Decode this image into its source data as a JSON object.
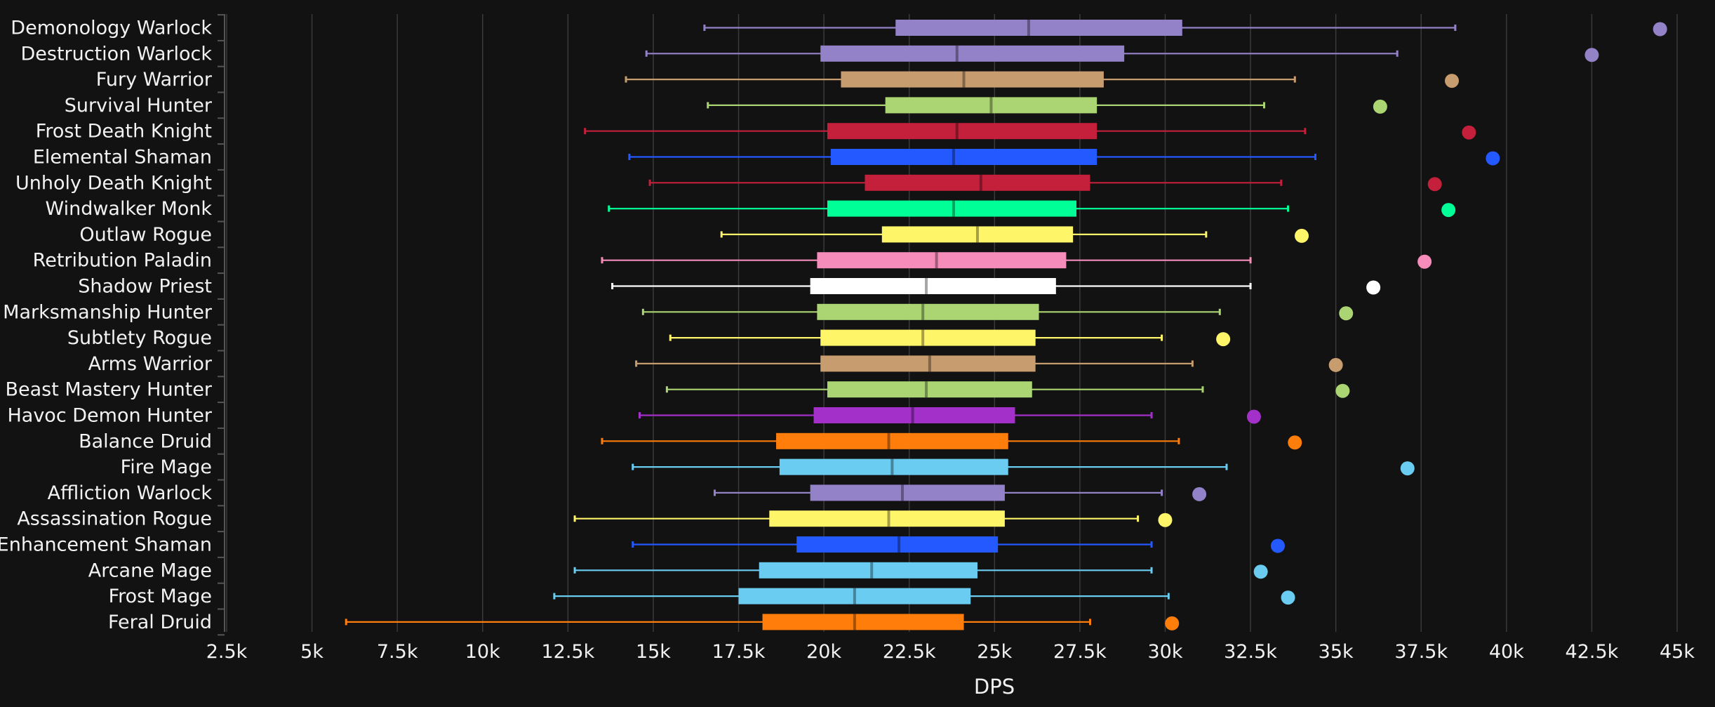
{
  "chart_data": {
    "type": "box",
    "title": "",
    "xlabel": "DPS",
    "ylabel": "",
    "xlim": [
      2500,
      45000
    ],
    "x_ticks": [
      2500,
      5000,
      7500,
      10000,
      12500,
      15000,
      17500,
      20000,
      22500,
      25000,
      27500,
      30000,
      32500,
      35000,
      37500,
      40000,
      42500,
      45000
    ],
    "x_tick_labels": [
      "2.5k",
      "5k",
      "7.5k",
      "10k",
      "12.5k",
      "15k",
      "17.5k",
      "20k",
      "22.5k",
      "25k",
      "27.5k",
      "30k",
      "32.5k",
      "35k",
      "37.5k",
      "40k",
      "42.5k",
      "45k"
    ],
    "grid": true,
    "series": [
      {
        "name": "Demonology Warlock",
        "color": "#9482c9",
        "min": 16500,
        "q1": 22100,
        "median": 26000,
        "q3": 30500,
        "max": 38500,
        "outlier": 44500
      },
      {
        "name": "Destruction Warlock",
        "color": "#9482c9",
        "min": 14800,
        "q1": 19900,
        "median": 23900,
        "q3": 28800,
        "max": 36800,
        "outlier": 42500
      },
      {
        "name": "Fury Warrior",
        "color": "#c79c6e",
        "min": 14200,
        "q1": 20500,
        "median": 24100,
        "q3": 28200,
        "max": 33800,
        "outlier": 38400
      },
      {
        "name": "Survival Hunter",
        "color": "#abd473",
        "min": 16600,
        "q1": 21800,
        "median": 24900,
        "q3": 28000,
        "max": 32900,
        "outlier": 36300
      },
      {
        "name": "Frost Death Knight",
        "color": "#c41f3b",
        "min": 13000,
        "q1": 20100,
        "median": 23900,
        "q3": 28000,
        "max": 34100,
        "outlier": 38900
      },
      {
        "name": "Elemental Shaman",
        "color": "#2459ff",
        "min": 14300,
        "q1": 20200,
        "median": 23800,
        "q3": 28000,
        "max": 34400,
        "outlier": 39600
      },
      {
        "name": "Unholy Death Knight",
        "color": "#c41f3b",
        "min": 14900,
        "q1": 21200,
        "median": 24600,
        "q3": 27800,
        "max": 33400,
        "outlier": 37900
      },
      {
        "name": "Windwalker Monk",
        "color": "#00ff96",
        "min": 13700,
        "q1": 20100,
        "median": 23800,
        "q3": 27400,
        "max": 33600,
        "outlier": 38300
      },
      {
        "name": "Outlaw Rogue",
        "color": "#fff569",
        "min": 17000,
        "q1": 21700,
        "median": 24500,
        "q3": 27300,
        "max": 31200,
        "outlier": 34000
      },
      {
        "name": "Retribution Paladin",
        "color": "#f58cba",
        "min": 13500,
        "q1": 19800,
        "median": 23300,
        "q3": 27100,
        "max": 32500,
        "outlier": 37600
      },
      {
        "name": "Shadow Priest",
        "color": "#ffffff",
        "min": 13800,
        "q1": 19600,
        "median": 23000,
        "q3": 26800,
        "max": 32500,
        "outlier": 36100
      },
      {
        "name": "Marksmanship Hunter",
        "color": "#abd473",
        "min": 14700,
        "q1": 19800,
        "median": 22900,
        "q3": 26300,
        "max": 31600,
        "outlier": 35300
      },
      {
        "name": "Subtlety Rogue",
        "color": "#fff569",
        "min": 15500,
        "q1": 19900,
        "median": 22900,
        "q3": 26200,
        "max": 29900,
        "outlier": 31700
      },
      {
        "name": "Arms Warrior",
        "color": "#c79c6e",
        "min": 14500,
        "q1": 19900,
        "median": 23100,
        "q3": 26200,
        "max": 30800,
        "outlier": 35000
      },
      {
        "name": "Beast Mastery Hunter",
        "color": "#abd473",
        "min": 15400,
        "q1": 20100,
        "median": 23000,
        "q3": 26100,
        "max": 31100,
        "outlier": 35200
      },
      {
        "name": "Havoc Demon Hunter",
        "color": "#a330c9",
        "min": 14600,
        "q1": 19700,
        "median": 22600,
        "q3": 25600,
        "max": 29600,
        "outlier": 32600
      },
      {
        "name": "Balance Druid",
        "color": "#ff7d0a",
        "min": 13500,
        "q1": 18600,
        "median": 21900,
        "q3": 25400,
        "max": 30400,
        "outlier": 33800
      },
      {
        "name": "Fire Mage",
        "color": "#69ccf0",
        "min": 14400,
        "q1": 18700,
        "median": 22000,
        "q3": 25400,
        "max": 31800,
        "outlier": 37100
      },
      {
        "name": "Affliction Warlock",
        "color": "#9482c9",
        "min": 16800,
        "q1": 19600,
        "median": 22300,
        "q3": 25300,
        "max": 29900,
        "outlier": 31000
      },
      {
        "name": "Assassination Rogue",
        "color": "#fff569",
        "min": 12700,
        "q1": 18400,
        "median": 21900,
        "q3": 25300,
        "max": 29200,
        "outlier": 30000
      },
      {
        "name": "Enhancement Shaman",
        "color": "#2459ff",
        "min": 14400,
        "q1": 19200,
        "median": 22200,
        "q3": 25100,
        "max": 29600,
        "outlier": 33300
      },
      {
        "name": "Arcane Mage",
        "color": "#69ccf0",
        "min": 12700,
        "q1": 18100,
        "median": 21400,
        "q3": 24500,
        "max": 29600,
        "outlier": 32800
      },
      {
        "name": "Frost Mage",
        "color": "#69ccf0",
        "min": 12100,
        "q1": 17500,
        "median": 20900,
        "q3": 24300,
        "max": 30100,
        "outlier": 33600
      },
      {
        "name": "Feral Druid",
        "color": "#ff7d0a",
        "min": 6000,
        "q1": 18200,
        "median": 20900,
        "q3": 24100,
        "max": 27800,
        "outlier": 30200
      }
    ]
  }
}
